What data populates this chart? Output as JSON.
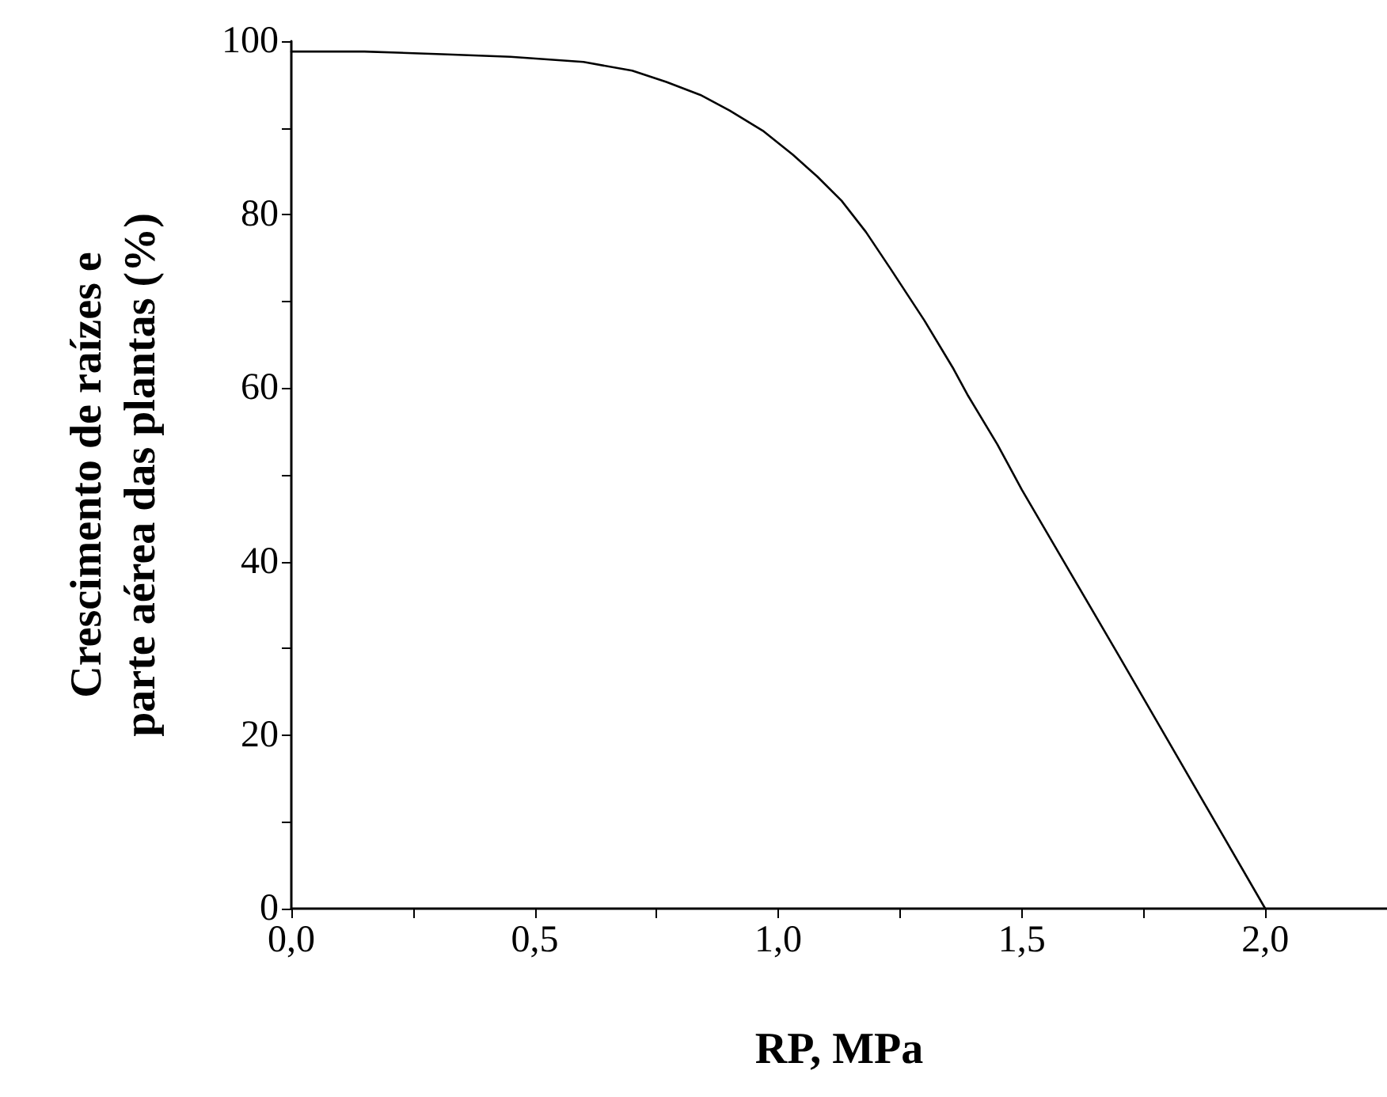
{
  "chart_data": {
    "type": "line",
    "xlabel": "RP, MPa",
    "ylabel": "Crescimento de raízes e\nparte aérea das plantas (%)",
    "x": [
      0,
      0.15,
      0.31,
      0.45,
      0.6,
      0.7,
      0.77,
      0.84,
      0.9,
      0.97,
      1.03,
      1.08,
      1.13,
      1.18,
      1.23,
      1.3,
      1.36,
      1.39,
      1.45,
      1.5,
      1.6,
      1.7,
      1.8,
      1.9,
      2.0
    ],
    "series": [
      {
        "color": "#000000",
        "values": [
          98.8,
          98.8,
          98.5,
          98.2,
          97.6,
          96.6,
          95.3,
          93.8,
          92,
          89.6,
          86.9,
          84.4,
          81.6,
          78,
          73.8,
          67.8,
          62.2,
          59.1,
          53.5,
          48.3,
          38.7,
          29.1,
          19.4,
          9.7,
          0
        ]
      }
    ],
    "xlim": [
      0,
      2.25
    ],
    "ylim": [
      0,
      100
    ],
    "xticks": [
      {
        "value": 0,
        "label": "0,0"
      },
      {
        "value": 0.25,
        "label": null
      },
      {
        "value": 0.5,
        "label": "0,5"
      },
      {
        "value": 0.75,
        "label": null
      },
      {
        "value": 1,
        "label": "1,0"
      },
      {
        "value": 1.25,
        "label": null
      },
      {
        "value": 1.5,
        "label": "1,5"
      },
      {
        "value": 1.75,
        "label": null
      },
      {
        "value": 2,
        "label": "2,0"
      }
    ],
    "yticks": [
      0,
      {
        "value": 10,
        "label": null
      },
      20,
      {
        "value": 30,
        "label": null
      },
      40,
      {
        "value": 50,
        "label": null
      },
      60,
      {
        "value": 70,
        "label": null
      },
      80,
      {
        "value": 90,
        "label": null
      },
      100
    ],
    "grid": false,
    "marker": "none",
    "line_style": "solid"
  }
}
